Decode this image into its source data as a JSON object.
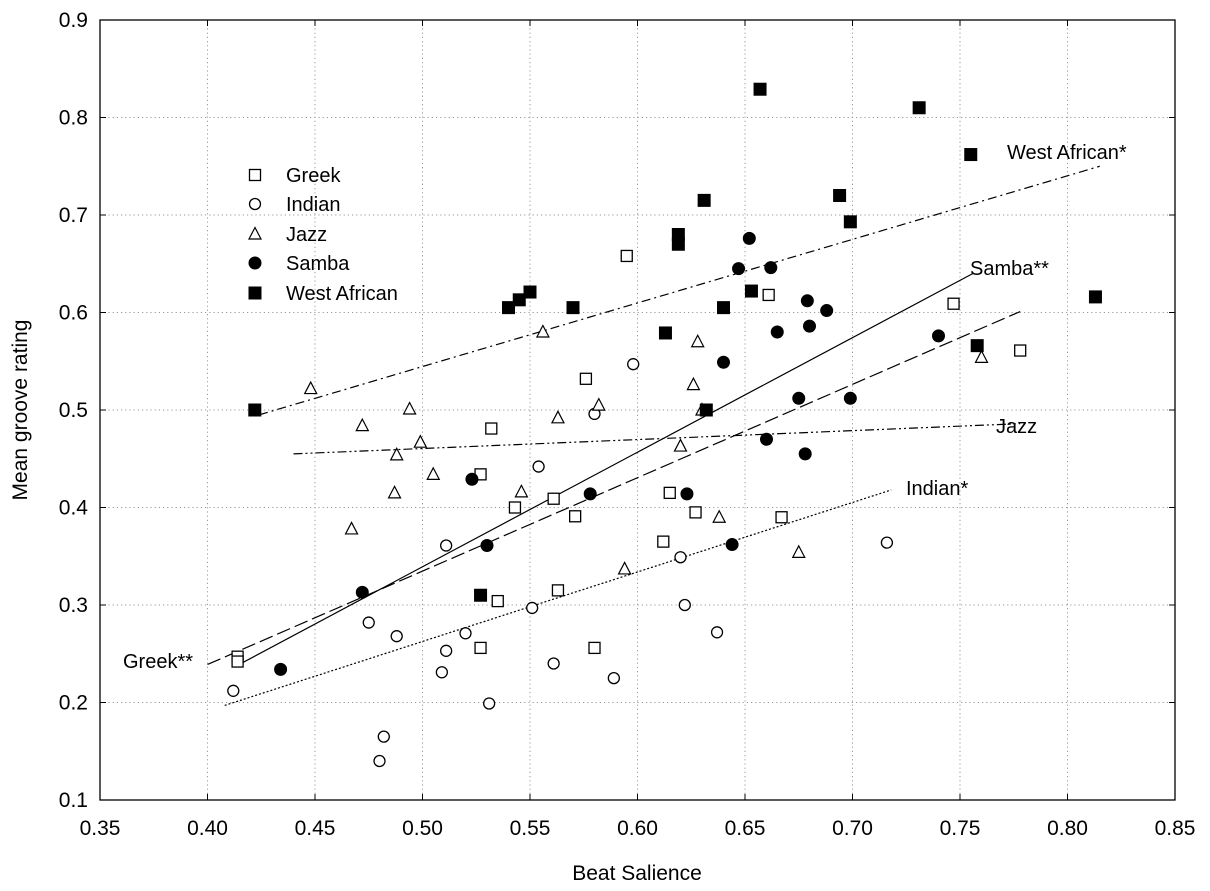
{
  "chart_data": {
    "type": "scatter",
    "xlabel": "Beat Salience",
    "ylabel": "Mean groove rating",
    "xlim": [
      0.35,
      0.85
    ],
    "ylim": [
      0.1,
      0.9
    ],
    "xticks": [
      "0.35",
      "0.40",
      "0.45",
      "0.50",
      "0.55",
      "0.60",
      "0.65",
      "0.70",
      "0.75",
      "0.80",
      "0.85"
    ],
    "yticks": [
      "0.1",
      "0.2",
      "0.3",
      "0.4",
      "0.5",
      "0.6",
      "0.7",
      "0.8",
      "0.9"
    ],
    "grid": true,
    "legend_position": "upper-left",
    "series": [
      {
        "name": "Greek",
        "marker": "square-open",
        "points": [
          [
            0.414,
            0.247
          ],
          [
            0.414,
            0.242
          ],
          [
            0.527,
            0.434
          ],
          [
            0.527,
            0.256
          ],
          [
            0.532,
            0.481
          ],
          [
            0.535,
            0.304
          ],
          [
            0.543,
            0.4
          ],
          [
            0.561,
            0.409
          ],
          [
            0.563,
            0.315
          ],
          [
            0.571,
            0.391
          ],
          [
            0.576,
            0.532
          ],
          [
            0.58,
            0.256
          ],
          [
            0.595,
            0.658
          ],
          [
            0.612,
            0.365
          ],
          [
            0.615,
            0.415
          ],
          [
            0.627,
            0.395
          ],
          [
            0.661,
            0.618
          ],
          [
            0.667,
            0.39
          ],
          [
            0.747,
            0.609
          ],
          [
            0.778,
            0.561
          ]
        ]
      },
      {
        "name": "Indian",
        "marker": "circle-open",
        "points": [
          [
            0.412,
            0.212
          ],
          [
            0.475,
            0.282
          ],
          [
            0.48,
            0.14
          ],
          [
            0.482,
            0.165
          ],
          [
            0.488,
            0.268
          ],
          [
            0.509,
            0.231
          ],
          [
            0.511,
            0.253
          ],
          [
            0.511,
            0.361
          ],
          [
            0.52,
            0.271
          ],
          [
            0.531,
            0.199
          ],
          [
            0.551,
            0.297
          ],
          [
            0.554,
            0.442
          ],
          [
            0.561,
            0.24
          ],
          [
            0.58,
            0.496
          ],
          [
            0.589,
            0.225
          ],
          [
            0.598,
            0.547
          ],
          [
            0.62,
            0.349
          ],
          [
            0.622,
            0.3
          ],
          [
            0.637,
            0.272
          ],
          [
            0.716,
            0.364
          ]
        ]
      },
      {
        "name": "Jazz",
        "marker": "triangle-open",
        "points": [
          [
            0.448,
            0.522
          ],
          [
            0.467,
            0.378
          ],
          [
            0.472,
            0.484
          ],
          [
            0.487,
            0.415
          ],
          [
            0.488,
            0.454
          ],
          [
            0.494,
            0.501
          ],
          [
            0.499,
            0.467
          ],
          [
            0.505,
            0.434
          ],
          [
            0.546,
            0.416
          ],
          [
            0.556,
            0.58
          ],
          [
            0.563,
            0.492
          ],
          [
            0.582,
            0.505
          ],
          [
            0.594,
            0.337
          ],
          [
            0.62,
            0.463
          ],
          [
            0.626,
            0.526
          ],
          [
            0.628,
            0.57
          ],
          [
            0.63,
            0.5
          ],
          [
            0.638,
            0.39
          ],
          [
            0.675,
            0.354
          ],
          [
            0.76,
            0.554
          ]
        ]
      },
      {
        "name": "Samba",
        "marker": "circle-filled",
        "points": [
          [
            0.434,
            0.234
          ],
          [
            0.472,
            0.313
          ],
          [
            0.523,
            0.429
          ],
          [
            0.53,
            0.361
          ],
          [
            0.578,
            0.414
          ],
          [
            0.623,
            0.414
          ],
          [
            0.64,
            0.549
          ],
          [
            0.644,
            0.362
          ],
          [
            0.647,
            0.645
          ],
          [
            0.652,
            0.676
          ],
          [
            0.66,
            0.47
          ],
          [
            0.662,
            0.646
          ],
          [
            0.665,
            0.58
          ],
          [
            0.675,
            0.512
          ],
          [
            0.678,
            0.455
          ],
          [
            0.679,
            0.612
          ],
          [
            0.68,
            0.586
          ],
          [
            0.688,
            0.602
          ],
          [
            0.699,
            0.512
          ],
          [
            0.74,
            0.576
          ]
        ]
      },
      {
        "name": "West African",
        "marker": "square-filled",
        "points": [
          [
            0.422,
            0.5
          ],
          [
            0.527,
            0.31
          ],
          [
            0.54,
            0.605
          ],
          [
            0.545,
            0.613
          ],
          [
            0.55,
            0.621
          ],
          [
            0.57,
            0.605
          ],
          [
            0.613,
            0.579
          ],
          [
            0.619,
            0.68
          ],
          [
            0.619,
            0.67
          ],
          [
            0.631,
            0.715
          ],
          [
            0.632,
            0.5
          ],
          [
            0.64,
            0.605
          ],
          [
            0.653,
            0.622
          ],
          [
            0.657,
            0.829
          ],
          [
            0.694,
            0.72
          ],
          [
            0.699,
            0.693
          ],
          [
            0.731,
            0.81
          ],
          [
            0.755,
            0.762
          ],
          [
            0.758,
            0.566
          ],
          [
            0.813,
            0.616
          ]
        ]
      }
    ],
    "regression_lines": [
      {
        "label": "West African*",
        "style": "dash-dot",
        "x": [
          0.424,
          0.815
        ],
        "y": [
          0.495,
          0.75
        ]
      },
      {
        "label": "Samba**",
        "style": "solid",
        "x": [
          0.413,
          0.756
        ],
        "y": [
          0.237,
          0.64
        ]
      },
      {
        "label": "Greek**",
        "style": "long-dash",
        "x": [
          0.4,
          0.778
        ],
        "y": [
          0.239,
          0.601
        ]
      },
      {
        "label": "Jazz",
        "style": "dash-dot-dot",
        "x": [
          0.44,
          0.778
        ],
        "y": [
          0.455,
          0.486
        ]
      },
      {
        "label": "Indian*",
        "style": "dotted",
        "x": [
          0.408,
          0.718
        ],
        "y": [
          0.197,
          0.418
        ]
      }
    ]
  }
}
